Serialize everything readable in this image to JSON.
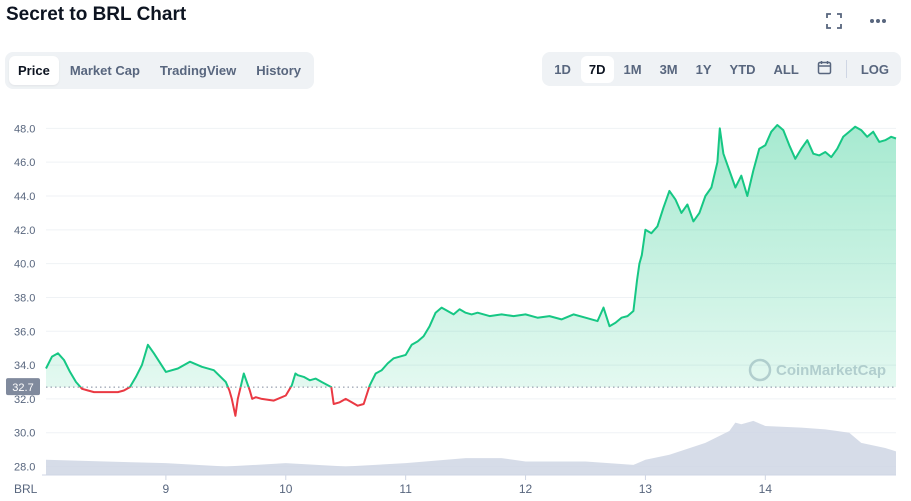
{
  "header": {
    "title": "Secret to BRL Chart",
    "fullscreen_icon": "fullscreen-icon",
    "more_icon": "more-horizontal-icon"
  },
  "tabs": [
    {
      "label": "Price",
      "active": true
    },
    {
      "label": "Market Cap",
      "active": false
    },
    {
      "label": "TradingView",
      "active": false
    },
    {
      "label": "History",
      "active": false
    }
  ],
  "ranges": [
    {
      "label": "1D",
      "active": false
    },
    {
      "label": "7D",
      "active": true
    },
    {
      "label": "1M",
      "active": false
    },
    {
      "label": "3M",
      "active": false
    },
    {
      "label": "1Y",
      "active": false
    },
    {
      "label": "YTD",
      "active": false
    },
    {
      "label": "ALL",
      "active": false
    }
  ],
  "range_extras": {
    "calendar_icon": "calendar-icon",
    "log_label": "LOG"
  },
  "watermark": "CoinMarketCap",
  "colors": {
    "up": "#16c784",
    "down": "#ea3943",
    "volume": "#cfd6e4",
    "grid": "#eff2f5",
    "axis_text": "#58667e"
  },
  "chart_data": {
    "type": "line",
    "title": "Secret to BRL Chart",
    "currency_label": "BRL",
    "y_ticks": [
      "28.0",
      "30.0",
      "32.0",
      "34.0",
      "36.0",
      "38.0",
      "40.0",
      "42.0",
      "44.0",
      "46.0",
      "48.0"
    ],
    "ylim": [
      27.5,
      49.5
    ],
    "x_ticks": [
      "9",
      "10",
      "11",
      "12",
      "13",
      "14"
    ],
    "x_tick_values": [
      9,
      10,
      11,
      12,
      13,
      14
    ],
    "xlim": [
      8.0,
      15.09
    ],
    "reference_price": 32.7,
    "reference_label": "32.7",
    "grid": true,
    "series": [
      {
        "x": [
          8.0,
          8.05,
          8.1,
          8.15,
          8.2,
          8.25,
          8.3,
          8.35,
          8.4,
          8.5,
          8.6,
          8.65,
          8.7,
          8.75,
          8.8,
          8.85,
          8.9,
          9.0,
          9.1,
          9.2,
          9.3,
          9.4,
          9.5,
          9.53,
          9.55,
          9.58,
          9.6,
          9.62,
          9.65,
          9.7,
          9.72,
          9.75,
          9.8,
          9.9,
          10.0,
          10.05,
          10.08,
          10.1,
          10.15,
          10.2,
          10.25,
          10.3,
          10.38,
          10.4,
          10.45,
          10.5,
          10.55,
          10.6,
          10.65,
          10.7,
          10.75,
          10.8,
          10.85,
          10.9,
          11.0,
          11.05,
          11.1,
          11.15,
          11.2,
          11.25,
          11.3,
          11.35,
          11.4,
          11.45,
          11.5,
          11.55,
          11.6,
          11.7,
          11.8,
          11.9,
          12.0,
          12.1,
          12.2,
          12.3,
          12.4,
          12.5,
          12.6,
          12.65,
          12.7,
          12.75,
          12.8,
          12.85,
          12.9,
          12.93,
          12.95,
          12.97,
          13.0,
          13.05,
          13.1,
          13.15,
          13.2,
          13.25,
          13.3,
          13.35,
          13.4,
          13.45,
          13.5,
          13.55,
          13.6,
          13.62,
          13.65,
          13.7,
          13.75,
          13.8,
          13.85,
          13.9,
          13.95,
          14.0,
          14.05,
          14.1,
          14.15,
          14.2,
          14.25,
          14.3,
          14.35,
          14.4,
          14.45,
          14.5,
          14.55,
          14.6,
          14.65,
          14.7,
          14.75,
          14.8,
          14.85,
          14.9,
          14.95,
          15.0,
          15.05,
          15.09
        ],
        "y": [
          33.8,
          34.5,
          34.7,
          34.3,
          33.6,
          33.0,
          32.6,
          32.5,
          32.4,
          32.4,
          32.4,
          32.5,
          32.7,
          33.3,
          34.0,
          35.2,
          34.7,
          33.6,
          33.8,
          34.2,
          33.9,
          33.7,
          33.0,
          32.5,
          32.0,
          31.0,
          32.0,
          32.6,
          33.5,
          32.5,
          32.0,
          32.1,
          32.0,
          31.9,
          32.2,
          32.8,
          33.5,
          33.4,
          33.3,
          33.1,
          33.2,
          33.0,
          32.7,
          31.7,
          31.8,
          32.0,
          31.8,
          31.6,
          31.7,
          32.8,
          33.5,
          33.7,
          34.1,
          34.4,
          34.6,
          35.2,
          35.4,
          35.7,
          36.3,
          37.1,
          37.4,
          37.2,
          37.0,
          37.3,
          37.1,
          37.0,
          37.1,
          36.9,
          37.0,
          36.9,
          37.0,
          36.8,
          36.9,
          36.7,
          37.0,
          36.8,
          36.6,
          37.4,
          36.3,
          36.5,
          36.8,
          36.9,
          37.2,
          39.0,
          40.0,
          40.5,
          42.0,
          41.8,
          42.2,
          43.3,
          44.3,
          43.8,
          43.0,
          43.5,
          42.5,
          43.0,
          44.0,
          44.5,
          46.0,
          48.0,
          46.5,
          45.5,
          44.5,
          45.2,
          44.0,
          45.5,
          46.8,
          47.0,
          47.8,
          48.2,
          47.9,
          47.0,
          46.2,
          46.8,
          47.3,
          46.5,
          46.4,
          46.6,
          46.3,
          46.8,
          47.5,
          47.8,
          48.1,
          47.9,
          47.5,
          47.8,
          47.2,
          47.3,
          47.5,
          47.4
        ],
        "baseline": 32.7
      }
    ],
    "volume_series": {
      "x": [
        8.0,
        8.5,
        9.0,
        9.5,
        10.0,
        10.5,
        11.0,
        11.5,
        11.8,
        12.0,
        12.5,
        12.9,
        13.0,
        13.2,
        13.5,
        13.7,
        13.75,
        13.8,
        13.9,
        14.0,
        14.3,
        14.5,
        14.6,
        14.7,
        14.8,
        15.0,
        15.09
      ],
      "values": [
        28.4,
        28.3,
        28.2,
        28.0,
        28.2,
        28.0,
        28.2,
        28.5,
        28.5,
        28.3,
        28.3,
        28.1,
        28.4,
        28.7,
        29.4,
        30.1,
        30.6,
        30.5,
        30.7,
        30.4,
        30.3,
        30.2,
        30.1,
        30.0,
        29.4,
        29.1,
        28.9
      ]
    }
  }
}
